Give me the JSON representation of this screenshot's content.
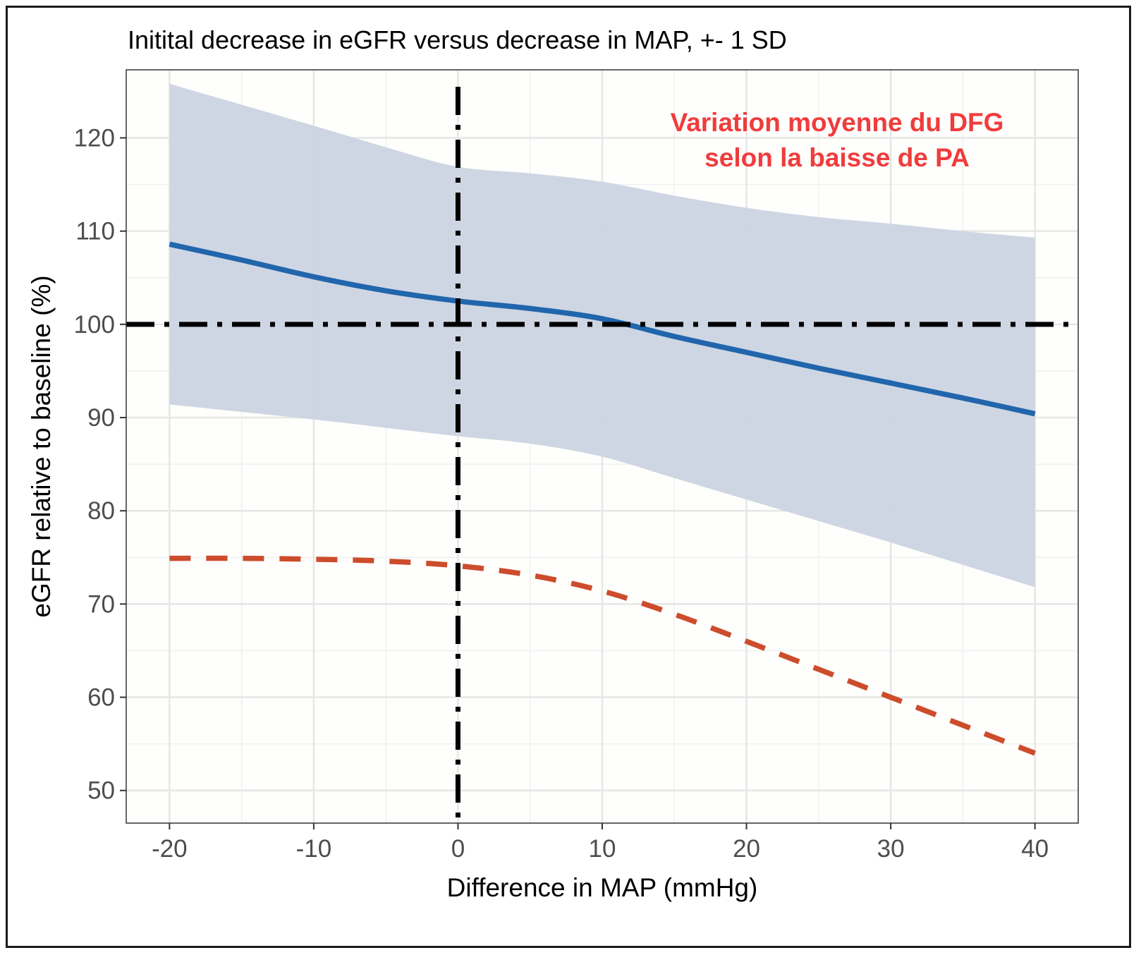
{
  "chart_data": {
    "type": "line",
    "title": "Initital decrease in eGFR versus decrease in MAP, +- 1 SD",
    "xlabel": "Difference in MAP (mmHg)",
    "ylabel": "eGFR relative to baseline (%)",
    "xlim": [
      -23,
      43
    ],
    "ylim": [
      46.5,
      127.3
    ],
    "x_ticks": [
      -20,
      -10,
      0,
      10,
      20,
      30,
      40
    ],
    "y_ticks": [
      50,
      60,
      70,
      80,
      90,
      100,
      110,
      120
    ],
    "grid": true,
    "annotation": {
      "lines": [
        "Variation moyenne du DFG",
        "selon la baisse de PA"
      ],
      "color": "#f03c3c",
      "placement": "top-right"
    },
    "reference_lines": [
      {
        "orientation": "horizontal",
        "value": 100,
        "style": "dashdot",
        "color": "#000000"
      },
      {
        "orientation": "vertical",
        "value": 0,
        "style": "dashdot",
        "color": "#000000"
      }
    ],
    "ribbon": {
      "color": "#ccd4e1",
      "x": [
        -20,
        -10,
        -5,
        0,
        5,
        10,
        15,
        20,
        25,
        30,
        35,
        40
      ],
      "upper": [
        125.8,
        121.3,
        119.0,
        116.9,
        116.2,
        115.3,
        113.8,
        112.5,
        111.5,
        110.8,
        110.0,
        109.3
      ],
      "lower": [
        91.4,
        89.8,
        88.9,
        88.0,
        87.2,
        85.8,
        83.5,
        81.2,
        78.9,
        76.6,
        74.2,
        71.8
      ]
    },
    "series": [
      {
        "style": "solid",
        "color": "#2166ac",
        "x": [
          -20,
          -15,
          -10,
          -5,
          0,
          5,
          10,
          15,
          20,
          25,
          30,
          35,
          40
        ],
        "y": [
          108.6,
          106.9,
          105.1,
          103.6,
          102.5,
          101.7,
          100.6,
          98.7,
          97.0,
          95.3,
          93.7,
          92.1,
          90.4
        ]
      },
      {
        "style": "dashed",
        "color": "#cc4c2c",
        "x": [
          -20,
          -15,
          -10,
          -5,
          0,
          5,
          10,
          15,
          20,
          25,
          30,
          35,
          40
        ],
        "y": [
          74.9,
          74.9,
          74.8,
          74.6,
          74.1,
          73.1,
          71.4,
          68.9,
          66.0,
          63.0,
          60.0,
          57.0,
          54.0
        ]
      }
    ]
  }
}
